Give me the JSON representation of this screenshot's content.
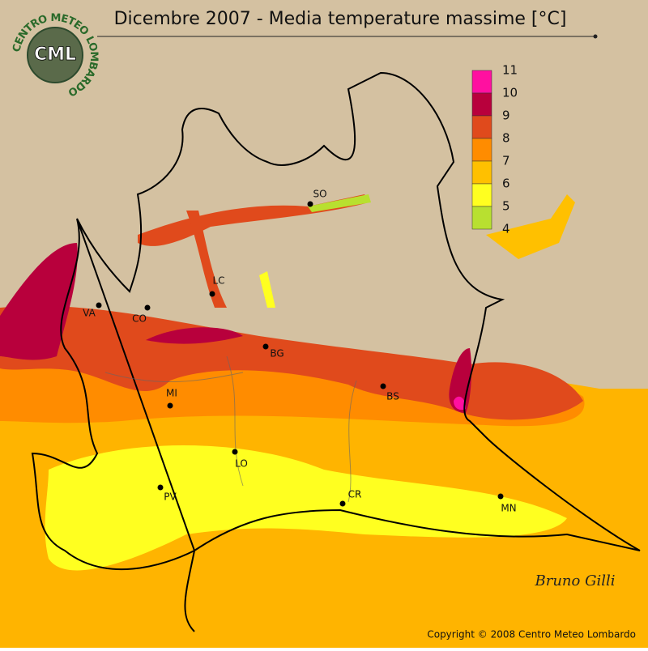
{
  "header": {
    "title": "Dicembre 2007 - Media temperature massime [°C]"
  },
  "logo": {
    "ring_text": "CENTRO METEO LOMBARDO",
    "initials": "CML"
  },
  "legend": {
    "labels": [
      "11",
      "10",
      "9",
      "8",
      "7",
      "6",
      "5",
      "4"
    ],
    "colors": [
      "#ff10a0",
      "#b8003c",
      "#e04a1c",
      "#ff8c00",
      "#ffc000",
      "#ffff20",
      "#b8e030"
    ]
  },
  "cities": [
    "SO",
    "LC",
    "VA",
    "CO",
    "BG",
    "MI",
    "BS",
    "LO",
    "PV",
    "CR",
    "MN"
  ],
  "signature": "Bruno Gilli",
  "footer": {
    "copyright": "Copyright © 2008 Centro Meteo Lombardo"
  }
}
